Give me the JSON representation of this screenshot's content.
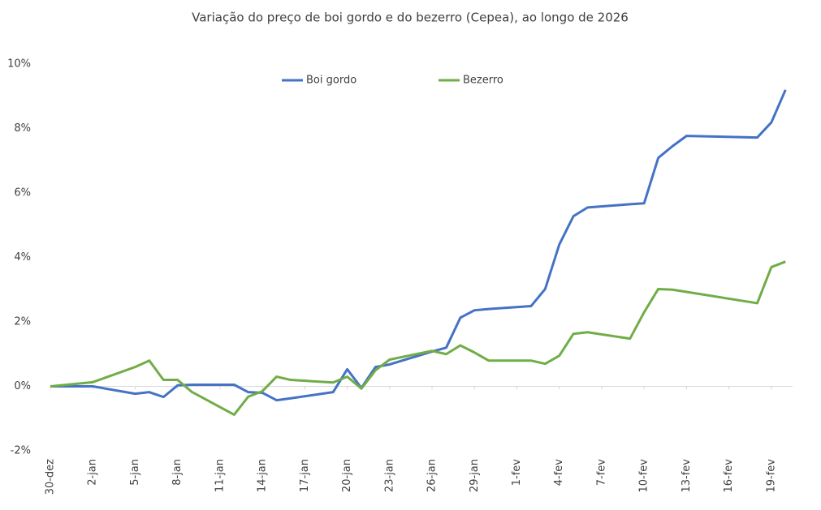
{
  "chart_data": {
    "type": "line",
    "title": "Variação do preço de boi gordo  e do bezerro (Cepea), ao longo de 2026",
    "x": [
      0,
      3,
      6,
      7,
      8,
      9,
      10,
      13,
      14,
      15,
      16,
      17,
      20,
      21,
      22,
      23,
      24,
      27,
      28,
      29,
      30,
      31,
      34,
      35,
      36,
      37,
      38,
      41,
      42,
      43,
      44,
      45,
      50,
      51,
      52
    ],
    "series": [
      {
        "name": "Boi gordo",
        "color": "#4472c4",
        "values": [
          0,
          0,
          -0.23,
          -0.18,
          -0.33,
          0.03,
          0.05,
          0.05,
          -0.18,
          -0.2,
          -0.43,
          -0.37,
          -0.18,
          0.53,
          -0.05,
          0.6,
          0.68,
          1.08,
          1.2,
          2.13,
          2.36,
          2.4,
          2.49,
          3.02,
          4.4,
          5.28,
          5.55,
          5.65,
          5.68,
          7.09,
          7.45,
          7.77,
          7.72,
          8.19,
          9.2
        ]
      },
      {
        "name": "Bezerro",
        "color": "#70ad47",
        "values": [
          0,
          0.13,
          0.6,
          0.8,
          0.2,
          0.2,
          -0.17,
          -0.88,
          -0.32,
          -0.15,
          0.3,
          0.2,
          0.12,
          0.3,
          -0.07,
          0.5,
          0.83,
          1.1,
          1.0,
          1.27,
          1.05,
          0.8,
          0.8,
          0.7,
          0.95,
          1.63,
          1.68,
          1.48,
          2.3,
          3.02,
          3.0,
          2.93,
          2.58,
          3.7,
          3.87
        ]
      }
    ],
    "xlim": [
      0,
      52.5
    ],
    "xticks": [
      {
        "value": 0,
        "label": "30-dez"
      },
      {
        "value": 3,
        "label": "2-jan"
      },
      {
        "value": 6,
        "label": "5-jan"
      },
      {
        "value": 9,
        "label": "8-jan"
      },
      {
        "value": 12,
        "label": "11-jan"
      },
      {
        "value": 15,
        "label": "14-jan"
      },
      {
        "value": 18,
        "label": "17-jan"
      },
      {
        "value": 21,
        "label": "20-jan"
      },
      {
        "value": 24,
        "label": "23-jan"
      },
      {
        "value": 27,
        "label": "26-jan"
      },
      {
        "value": 30,
        "label": "29-jan"
      },
      {
        "value": 33,
        "label": "1-fev"
      },
      {
        "value": 36,
        "label": "4-fev"
      },
      {
        "value": 39,
        "label": "7-fev"
      },
      {
        "value": 42,
        "label": "10-fev"
      },
      {
        "value": 45,
        "label": "13-fev"
      },
      {
        "value": 48,
        "label": "16-fev"
      },
      {
        "value": 51,
        "label": "19-fev"
      }
    ],
    "ylim": [
      -2,
      10
    ],
    "yticks": [
      {
        "value": -2,
        "label": "-2%"
      },
      {
        "value": 0,
        "label": "0%"
      },
      {
        "value": 2,
        "label": "2%"
      },
      {
        "value": 4,
        "label": "4%"
      },
      {
        "value": 6,
        "label": "6%"
      },
      {
        "value": 8,
        "label": "8%"
      },
      {
        "value": 10,
        "label": "10%"
      }
    ],
    "legend": "top"
  }
}
